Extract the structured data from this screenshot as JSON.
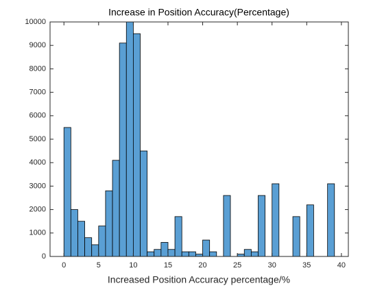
{
  "chart_data": {
    "type": "histogram",
    "title": "Increase in Position Accuracy(Percentage)",
    "x_label": "Increased Position Accuracy percentage/%",
    "bins": [
      0,
      1,
      2,
      3,
      4,
      5,
      6,
      7,
      8,
      9,
      10,
      11,
      12,
      13,
      14,
      15,
      16,
      17,
      18,
      19,
      20,
      21,
      22,
      23,
      24,
      25,
      26,
      27,
      28,
      29,
      30,
      31,
      32,
      33,
      34,
      35,
      36,
      37,
      38,
      39
    ],
    "values": [
      5500,
      2000,
      1500,
      800,
      500,
      1300,
      2800,
      4100,
      9100,
      10000,
      9500,
      4500,
      200,
      300,
      600,
      300,
      1700,
      200,
      200,
      100,
      700,
      200,
      0,
      2600,
      0,
      100,
      300,
      200,
      2600,
      0,
      3100,
      0,
      0,
      1700,
      0,
      2200,
      0,
      0,
      3100
    ],
    "color": "#5a9fd4",
    "xlim": [
      -2,
      41
    ],
    "xticks": [
      0,
      5,
      10,
      15,
      20,
      25,
      30,
      35,
      40
    ],
    "ylim": [
      0,
      10000
    ],
    "yticks": [
      0,
      1000,
      2000,
      3000,
      4000,
      5000,
      6000,
      7000,
      8000,
      9000,
      10000
    ]
  }
}
